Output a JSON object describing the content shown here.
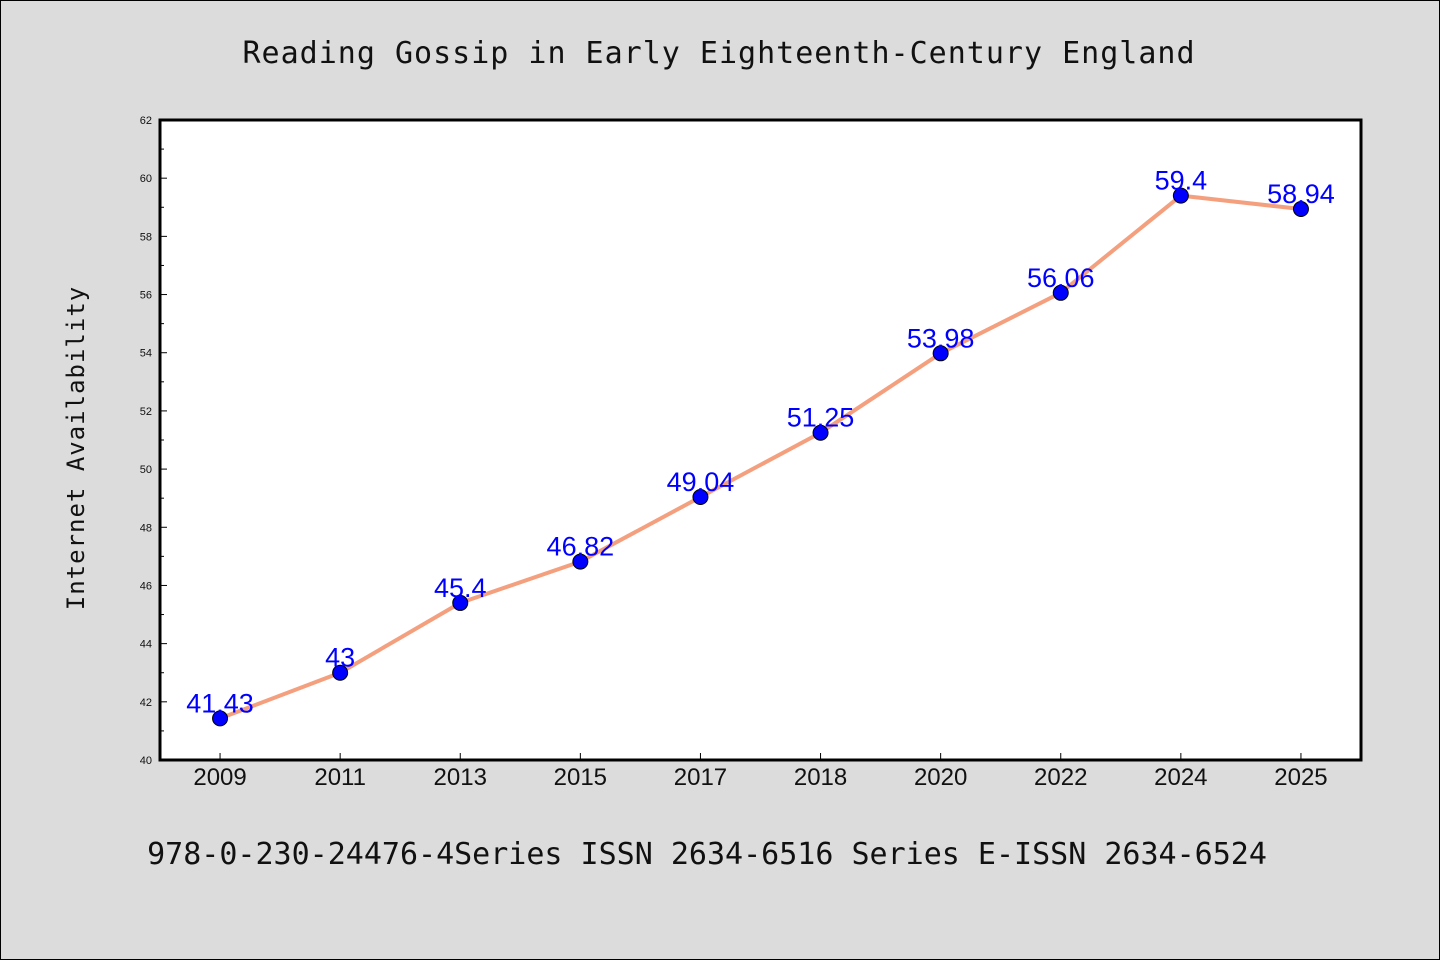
{
  "chart_data": {
    "type": "line",
    "title": "Reading Gossip in Early Eighteenth-Century England",
    "xlabel": "",
    "ylabel": "Internet Availability",
    "categories": [
      "2009",
      "2011",
      "2013",
      "2015",
      "2017",
      "2018",
      "2020",
      "2022",
      "2024",
      "2025"
    ],
    "series": [
      {
        "values": [
          41.43,
          43,
          45.4,
          46.82,
          49.04,
          51.25,
          53.98,
          56.06,
          59.4,
          58.94
        ],
        "labels": [
          "41.43",
          "43",
          "45.4",
          "46.82",
          "49.04",
          "51.25",
          "53.98",
          "56.06",
          "59.4",
          "58.94"
        ]
      }
    ],
    "ylim": [
      40,
      62
    ],
    "yticks": [
      "40",
      "42",
      "44",
      "46",
      "48",
      "50",
      "52",
      "54",
      "56",
      "58",
      "60",
      "62"
    ],
    "grid": false,
    "colors": {
      "line": "#f4a07e",
      "marker": "#0000ff",
      "data_label": "#0000ff",
      "background": "#dcdcdc",
      "plot_background": "#ffffff"
    }
  },
  "footer": "978-0-230-24476-4Series ISSN 2634-6516 Series E-ISSN 2634-6524"
}
